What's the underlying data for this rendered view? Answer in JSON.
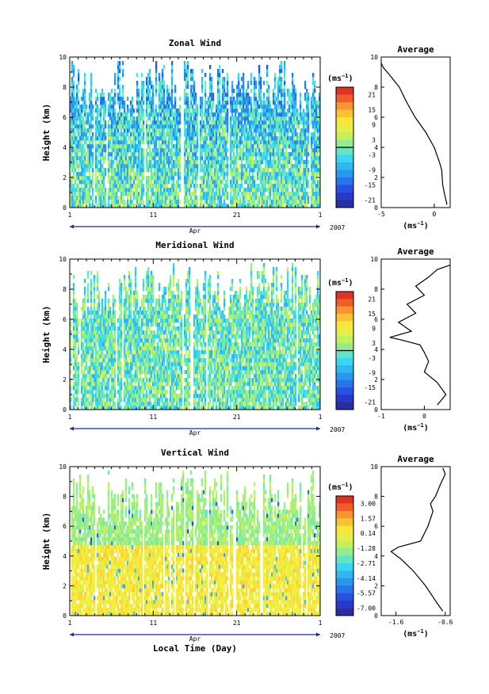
{
  "chart_data": [
    {
      "type": "heatmap",
      "title": "Zonal Wind",
      "ylabel": "Height (km)",
      "xlabel": "",
      "x_axis_label": "Apr",
      "year_label": "2007",
      "xlim": [
        1,
        31
      ],
      "ylim": [
        0,
        10
      ],
      "x_ticks": [
        "1",
        "11",
        "21",
        "1"
      ],
      "y_ticks": [
        "0",
        "2",
        "4",
        "6",
        "8",
        "10"
      ],
      "colorbar": {
        "unit": "(ms",
        "unit_exp": "−1",
        "ticks": [
          "21",
          "15",
          "9",
          "3",
          "-3",
          "-9",
          "-15",
          "-21"
        ],
        "range": [
          -24,
          24
        ]
      },
      "average_profile": {
        "title": "Average",
        "xlabel": "(ms",
        "xlabel_exp": "−1",
        "x_ticks": [
          "-5",
          "0"
        ],
        "xlim": [
          -5,
          1.5
        ],
        "ylim": [
          0,
          10
        ],
        "x": [
          1.2,
          1.0,
          0.8,
          0.7,
          0.5,
          0.0,
          -0.8,
          -1.8,
          -2.6,
          -3.3,
          -4.2,
          -4.8,
          -5.0
        ],
        "y": [
          0.2,
          0.8,
          1.5,
          2.5,
          3.0,
          4.0,
          5.0,
          6.0,
          7.0,
          8.0,
          8.8,
          9.3,
          9.6
        ]
      }
    },
    {
      "type": "heatmap",
      "title": "Meridional Wind",
      "ylabel": "Height (km)",
      "xlabel": "",
      "x_axis_label": "Apr",
      "year_label": "2007",
      "xlim": [
        1,
        31
      ],
      "ylim": [
        0,
        10
      ],
      "x_ticks": [
        "1",
        "11",
        "21",
        "1"
      ],
      "y_ticks": [
        "0",
        "2",
        "4",
        "6",
        "8",
        "10"
      ],
      "colorbar": {
        "unit": "(ms",
        "unit_exp": "−1",
        "ticks": [
          "21",
          "15",
          "9",
          "3",
          "-3",
          "-9",
          "-15",
          "-21"
        ],
        "range": [
          -24,
          24
        ]
      },
      "average_profile": {
        "title": "Average",
        "xlabel": "(ms",
        "xlabel_exp": "−1",
        "x_ticks": [
          "-1",
          "0"
        ],
        "xlim": [
          -1,
          0.6
        ],
        "ylim": [
          0,
          10
        ],
        "x": [
          0.3,
          0.5,
          0.3,
          0.0,
          0.1,
          0.0,
          -0.1,
          -0.5,
          -0.8,
          -0.3,
          -0.6,
          -0.2,
          -0.4,
          0.0,
          -0.2,
          0.1,
          0.3,
          0.6
        ],
        "y": [
          0.3,
          1.0,
          1.8,
          2.5,
          3.2,
          3.8,
          4.3,
          4.6,
          4.8,
          5.2,
          5.8,
          6.4,
          7.0,
          7.6,
          8.2,
          8.8,
          9.3,
          9.6
        ]
      }
    },
    {
      "type": "heatmap",
      "title": "Vertical Wind",
      "ylabel": "Height (km)",
      "xlabel": "Local Time (Day)",
      "x_axis_label": "Apr",
      "year_label": "2007",
      "xlim": [
        1,
        31
      ],
      "ylim": [
        0,
        10
      ],
      "x_ticks": [
        "1",
        "11",
        "21",
        "1"
      ],
      "y_ticks": [
        "0",
        "2",
        "4",
        "6",
        "8",
        "10"
      ],
      "colorbar": {
        "unit": "(ms",
        "unit_exp": "−1",
        "ticks": [
          "3.00",
          "1.57",
          "0.14",
          "-1.28",
          "-2.71",
          "-4.14",
          "-5.57",
          "-7.00"
        ],
        "range": [
          -7.7,
          3.7
        ]
      },
      "average_profile": {
        "title": "Average",
        "xlabel": "(ms",
        "xlabel_exp": "−1",
        "x_ticks": [
          "-1.6",
          "-0.6"
        ],
        "xlim": [
          -1.9,
          -0.5
        ],
        "ylim": [
          0,
          10
        ],
        "x": [
          -0.65,
          -0.8,
          -1.0,
          -1.25,
          -1.5,
          -1.7,
          -1.55,
          -1.1,
          -0.95,
          -0.85,
          -0.9,
          -0.8,
          -0.7,
          -0.6,
          -0.65
        ],
        "y": [
          0.3,
          1.0,
          2.0,
          3.0,
          3.8,
          4.3,
          4.6,
          5.0,
          6.0,
          7.0,
          7.5,
          8.0,
          8.8,
          9.5,
          9.9
        ]
      }
    }
  ]
}
